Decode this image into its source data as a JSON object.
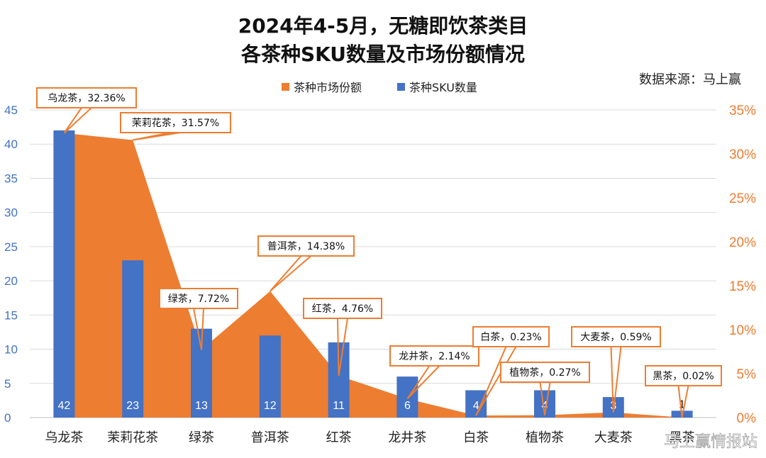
{
  "title_line1": "2024年4-5月，无糖即饮茶类目",
  "title_line2": "各茶种SKU数量及市场份额情况",
  "source": "数据来源：马上赢",
  "watermark": "马上赢情报站",
  "colors": {
    "area": "#ed7d31",
    "bar": "#4472c4",
    "grid": "#d9d9d9"
  },
  "chart_data": {
    "type": "bar",
    "categories": [
      "乌龙茶",
      "茉莉花茶",
      "绿茶",
      "普洱茶",
      "红茶",
      "龙井茶",
      "白茶",
      "植物茶",
      "大麦茶",
      "黑茶"
    ],
    "series": [
      {
        "name": "茶种市场份额",
        "type": "area",
        "axis": "right",
        "values": [
          32.36,
          31.57,
          7.72,
          14.38,
          4.76,
          2.14,
          0.23,
          0.27,
          0.59,
          0.02
        ]
      },
      {
        "name": "茶种SKU数量",
        "type": "bar",
        "axis": "left",
        "values": [
          42,
          23,
          13,
          12,
          11,
          6,
          4,
          4,
          3,
          1
        ]
      }
    ],
    "value_labels": [
      "42",
      "23",
      "13",
      "12",
      "11",
      "6",
      "4",
      "4",
      "3",
      "1"
    ],
    "callouts": [
      "乌龙茶，32.36%",
      "茉莉花茶，31.57%",
      "绿茶，7.72%",
      "普洱茶，14.38%",
      "红茶，4.76%",
      "龙井茶，2.14%",
      "白茶，0.23%",
      "植物茶，0.27%",
      "大麦茶，0.59%",
      "黑茶，0.02%"
    ],
    "y_left": {
      "ticks": [
        "0",
        "5",
        "10",
        "15",
        "20",
        "25",
        "30",
        "35",
        "40",
        "45"
      ],
      "range": [
        0,
        45
      ]
    },
    "y_right": {
      "ticks": [
        "0%",
        "5%",
        "10%",
        "15%",
        "20%",
        "25%",
        "30%",
        "35%"
      ],
      "range": [
        0,
        35
      ]
    },
    "grid": true,
    "legend": "top-center"
  }
}
